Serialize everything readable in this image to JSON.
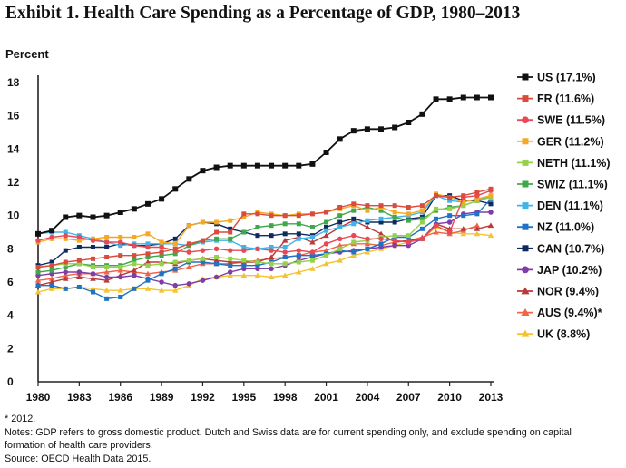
{
  "title": "Exhibit 1. Health Care Spending as a Percentage of GDP, 1980–2013",
  "notes": [
    "* 2012.",
    "Notes: GDP refers to gross domestic product. Dutch and Swiss data are for current spending only, and exclude spending on capital",
    "formation of health care providers.",
    "Source: OECD Health Data 2015."
  ],
  "chart_data": {
    "type": "line",
    "ylabel": "Percent",
    "xlabel": "",
    "ylim": [
      0,
      18
    ],
    "xlim": [
      1980,
      2013
    ],
    "y_ticks": [
      "0",
      "2",
      "4",
      "6",
      "8",
      "10",
      "12",
      "14",
      "16",
      "18"
    ],
    "x_ticks": [
      "1980",
      "1983",
      "1986",
      "1989",
      "1992",
      "1995",
      "1998",
      "2001",
      "2004",
      "2007",
      "2010",
      "2013"
    ],
    "grid": false,
    "legend": "right",
    "x": [
      1980,
      1981,
      1982,
      1983,
      1984,
      1985,
      1986,
      1987,
      1988,
      1989,
      1990,
      1991,
      1992,
      1993,
      1994,
      1995,
      1996,
      1997,
      1998,
      1999,
      2000,
      2001,
      2002,
      2003,
      2004,
      2005,
      2006,
      2007,
      2008,
      2009,
      2010,
      2011,
      2012,
      2013
    ],
    "series": [
      {
        "name": "US (17.1%)",
        "color": "#111111",
        "marker": "square",
        "values": [
          8.9,
          9.1,
          9.9,
          10.0,
          9.9,
          10.0,
          10.2,
          10.4,
          10.7,
          11.0,
          11.6,
          12.2,
          12.7,
          12.9,
          13.0,
          13.0,
          13.0,
          13.0,
          13.0,
          13.0,
          13.1,
          13.8,
          14.6,
          15.1,
          15.2,
          15.2,
          15.3,
          15.6,
          16.1,
          17.0,
          17.0,
          17.1,
          17.1,
          17.1
        ]
      },
      {
        "name": "FR (11.6%)",
        "color": "#d94b3c",
        "marker": "square",
        "values": [
          6.9,
          7.0,
          7.2,
          7.3,
          7.4,
          7.5,
          7.6,
          7.6,
          7.7,
          7.8,
          8.0,
          8.3,
          8.5,
          9.0,
          9.0,
          10.1,
          10.1,
          10.0,
          10.0,
          10.0,
          10.1,
          10.2,
          10.5,
          10.7,
          10.6,
          10.6,
          10.6,
          10.5,
          10.6,
          11.2,
          11.1,
          11.2,
          11.4,
          11.6
        ]
      },
      {
        "name": "SWE (11.5%)",
        "color": "#e84a55",
        "marker": "circle",
        "values": [
          8.5,
          8.7,
          8.8,
          8.7,
          8.5,
          8.4,
          8.4,
          8.2,
          8.1,
          8.1,
          7.9,
          7.8,
          7.9,
          8.0,
          7.9,
          7.9,
          8.0,
          7.9,
          7.8,
          7.9,
          7.8,
          8.3,
          8.6,
          8.8,
          8.6,
          8.6,
          8.5,
          8.4,
          8.6,
          9.4,
          9.0,
          11.1,
          11.2,
          11.5
        ]
      },
      {
        "name": "GER (11.2%)",
        "color": "#f6a823",
        "marker": "square",
        "values": [
          8.4,
          8.6,
          8.6,
          8.5,
          8.6,
          8.7,
          8.7,
          8.7,
          8.9,
          8.4,
          8.3,
          9.4,
          9.6,
          9.6,
          9.7,
          9.9,
          10.2,
          10.1,
          10.0,
          10.1,
          10.1,
          10.2,
          10.4,
          10.6,
          10.3,
          10.5,
          10.2,
          10.1,
          10.3,
          11.3,
          11.1,
          10.8,
          11.0,
          11.2
        ]
      },
      {
        "name": "NETH (11.1%)",
        "color": "#95d14a",
        "marker": "square",
        "values": [
          6.9,
          7.0,
          7.1,
          7.1,
          6.9,
          6.9,
          6.9,
          7.1,
          7.0,
          7.1,
          7.2,
          7.3,
          7.4,
          7.5,
          7.4,
          7.3,
          7.2,
          7.1,
          7.1,
          7.2,
          7.3,
          7.6,
          8.0,
          8.4,
          8.5,
          8.7,
          8.8,
          8.8,
          9.6,
          10.4,
          10.4,
          10.6,
          10.9,
          11.1
        ]
      },
      {
        "name": "SWIZ (11.1%)",
        "color": "#3fa84a",
        "marker": "square",
        "values": [
          6.6,
          6.7,
          6.9,
          7.1,
          7.0,
          7.0,
          7.0,
          7.3,
          7.5,
          7.6,
          7.7,
          8.2,
          8.5,
          8.6,
          8.6,
          9.0,
          9.3,
          9.4,
          9.5,
          9.5,
          9.3,
          9.6,
          10.0,
          10.3,
          10.5,
          10.3,
          9.9,
          9.7,
          9.8,
          10.3,
          10.5,
          10.6,
          10.9,
          11.1
        ]
      },
      {
        "name": "DEN (11.1%)",
        "color": "#42b3e8",
        "marker": "square",
        "values": [
          8.9,
          9.0,
          9.0,
          8.8,
          8.6,
          8.4,
          8.2,
          8.3,
          8.3,
          8.3,
          8.3,
          8.2,
          8.4,
          8.5,
          8.5,
          8.1,
          8.0,
          8.1,
          8.1,
          8.6,
          8.7,
          9.1,
          9.3,
          9.5,
          9.7,
          9.8,
          9.9,
          10.0,
          10.2,
          11.2,
          10.9,
          10.8,
          11.0,
          11.1
        ]
      },
      {
        "name": "NZ (11.0%)",
        "color": "#1f73c4",
        "marker": "square",
        "values": [
          5.8,
          5.8,
          5.6,
          5.7,
          5.4,
          5.0,
          5.1,
          5.6,
          6.1,
          6.5,
          6.8,
          7.2,
          7.2,
          7.1,
          7.0,
          7.0,
          7.0,
          7.2,
          7.5,
          7.6,
          7.6,
          7.7,
          7.9,
          7.8,
          8.0,
          8.3,
          8.7,
          8.7,
          9.2,
          9.8,
          10.0,
          10.0,
          10.1,
          11.0
        ]
      },
      {
        "name": "CAN (10.7%)",
        "color": "#0f2a5e",
        "marker": "square",
        "values": [
          7.0,
          7.2,
          7.9,
          8.1,
          8.1,
          8.1,
          8.3,
          8.2,
          8.2,
          8.3,
          8.6,
          9.4,
          9.6,
          9.5,
          9.2,
          9.0,
          8.8,
          8.8,
          8.9,
          8.9,
          8.8,
          9.3,
          9.6,
          9.8,
          9.6,
          9.6,
          9.6,
          9.8,
          9.9,
          11.2,
          11.2,
          10.9,
          10.9,
          10.7
        ]
      },
      {
        "name": "JAP (10.2%)",
        "color": "#7d3ea8",
        "marker": "circle",
        "values": [
          6.4,
          6.5,
          6.6,
          6.6,
          6.5,
          6.3,
          6.3,
          6.4,
          6.2,
          6.0,
          5.8,
          5.9,
          6.1,
          6.3,
          6.6,
          6.8,
          6.8,
          6.8,
          7.0,
          7.3,
          7.5,
          7.7,
          7.8,
          7.9,
          8.0,
          8.1,
          8.2,
          8.2,
          8.6,
          9.5,
          9.6,
          10.1,
          10.2,
          10.2
        ]
      },
      {
        "name": "NOR (9.4%)",
        "color": "#b93a3a",
        "marker": "triangle",
        "values": [
          5.8,
          6.0,
          6.2,
          6.3,
          6.2,
          6.1,
          6.4,
          6.7,
          7.2,
          7.2,
          7.1,
          7.3,
          7.4,
          7.3,
          7.2,
          7.2,
          7.2,
          7.5,
          8.5,
          8.7,
          8.4,
          8.8,
          9.3,
          9.7,
          9.3,
          8.9,
          8.4,
          8.5,
          8.6,
          9.5,
          9.2,
          9.2,
          9.2,
          9.4
        ]
      },
      {
        "name": "AUS (9.4%)*",
        "color": "#f06448",
        "marker": "triangle",
        "values": [
          6.1,
          6.2,
          6.4,
          6.5,
          6.5,
          6.6,
          6.7,
          6.6,
          6.5,
          6.6,
          6.7,
          6.9,
          7.1,
          7.1,
          7.1,
          7.2,
          7.3,
          7.4,
          7.5,
          7.6,
          7.8,
          7.9,
          8.2,
          8.3,
          8.3,
          8.2,
          8.4,
          8.5,
          8.7,
          9.0,
          8.9,
          9.1,
          9.4,
          null
        ]
      },
      {
        "name": "UK (8.8%)",
        "color": "#f4c430",
        "marker": "triangle",
        "values": [
          5.4,
          5.6,
          5.6,
          5.7,
          5.6,
          5.5,
          5.5,
          5.6,
          5.6,
          5.5,
          5.5,
          5.8,
          6.2,
          6.3,
          6.4,
          6.4,
          6.4,
          6.3,
          6.4,
          6.6,
          6.8,
          7.1,
          7.3,
          7.6,
          7.8,
          8.0,
          8.2,
          8.4,
          8.6,
          9.3,
          9.0,
          8.9,
          8.9,
          8.8
        ]
      }
    ]
  }
}
